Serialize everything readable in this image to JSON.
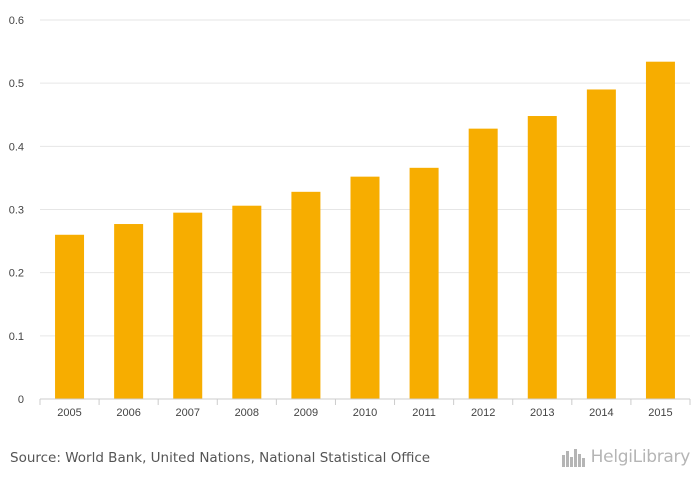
{
  "chart_data": {
    "type": "bar",
    "title": "",
    "xlabel": "",
    "ylabel": "",
    "categories": [
      "2005",
      "2006",
      "2007",
      "2008",
      "2009",
      "2010",
      "2011",
      "2012",
      "2013",
      "2014",
      "2015"
    ],
    "values": [
      0.26,
      0.277,
      0.295,
      0.306,
      0.328,
      0.352,
      0.366,
      0.428,
      0.448,
      0.49,
      0.534
    ],
    "ylim": [
      0,
      0.6
    ],
    "yticks": [
      "0",
      "0.1",
      "0.2",
      "0.3",
      "0.4",
      "0.5",
      "0.6"
    ],
    "ytick_values": [
      0,
      0.1,
      0.2,
      0.3,
      0.4,
      0.5,
      0.6
    ],
    "grid": true,
    "bar_color": "#f7ad00",
    "grid_color": "#e6e6e6"
  },
  "footer": {
    "source": "Source: World Bank, United Nations, National Statistical Office",
    "brand": "HelgiLibrary",
    "brand_icon": "city-skyline-icon"
  }
}
